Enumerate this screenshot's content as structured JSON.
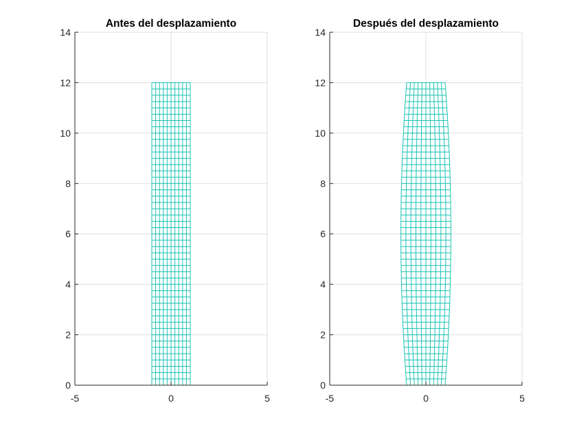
{
  "figure": {
    "background": "#ffffff",
    "grid_color": "#dfdfdf",
    "axis_color": "#262626",
    "mesh_color": "#19c3b4"
  },
  "chart_data": [
    {
      "type": "mesh",
      "title": "Antes del desplazamiento",
      "xlabel": "",
      "ylabel": "",
      "xlim": [
        -5,
        5
      ],
      "ylim": [
        0,
        14
      ],
      "xticks": [
        -5,
        0,
        5
      ],
      "xtick_labels": [
        "-5",
        "0",
        "5"
      ],
      "yticks": [
        0,
        2,
        4,
        6,
        8,
        10,
        12,
        14
      ],
      "ytick_labels": [
        "0",
        "2",
        "4",
        "6",
        "8",
        "10",
        "12",
        "14"
      ],
      "grid": true,
      "mesh": {
        "x_min": -1,
        "x_max": 1,
        "y_min": 0,
        "y_max": 12,
        "columns": 10,
        "rows": 48,
        "bulge_max_x": 0
      }
    },
    {
      "type": "mesh",
      "title": "Después del desplazamiento",
      "xlabel": "",
      "ylabel": "",
      "xlim": [
        -5,
        5
      ],
      "ylim": [
        0,
        14
      ],
      "xticks": [
        -5,
        0,
        5
      ],
      "xtick_labels": [
        "-5",
        "0",
        "5"
      ],
      "yticks": [
        0,
        2,
        4,
        6,
        8,
        10,
        12,
        14
      ],
      "ytick_labels": [
        "0",
        "2",
        "4",
        "6",
        "8",
        "10",
        "12",
        "14"
      ],
      "grid": true,
      "mesh": {
        "x_min": -1,
        "x_max": 1,
        "y_min": 0,
        "y_max": 12,
        "columns": 10,
        "rows": 48,
        "bulge_max_x": 0.3
      }
    }
  ]
}
